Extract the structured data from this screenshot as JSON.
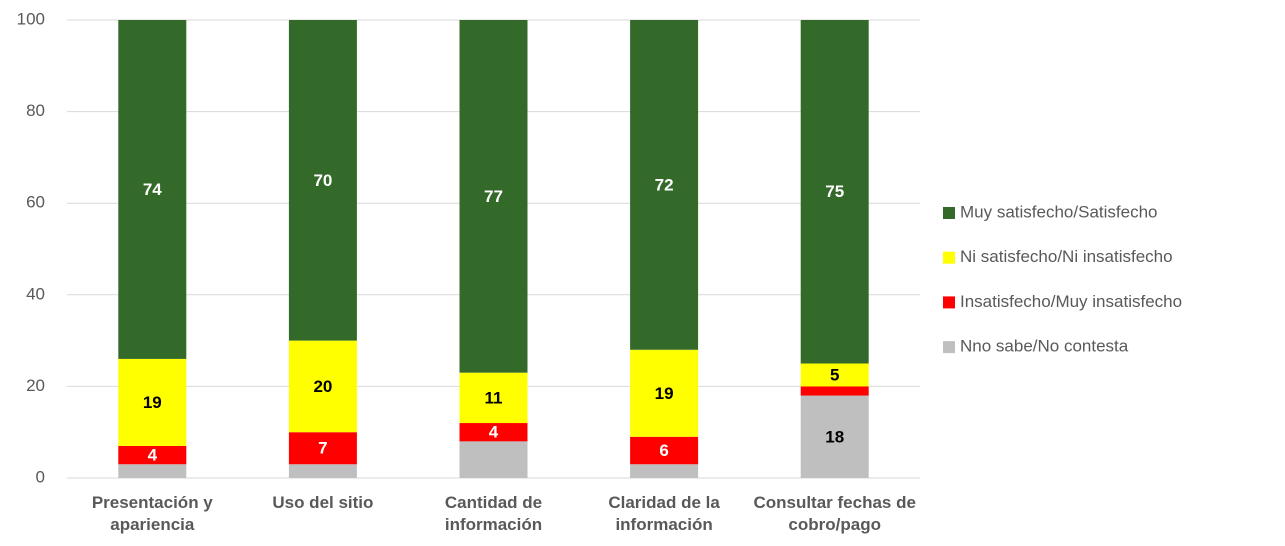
{
  "chart_data": {
    "type": "stacked_bar",
    "categories": [
      "Presentación y apariencia",
      "Uso del sitio",
      "Cantidad de información",
      "Claridad de la información",
      "Consultar fechas de cobro/pago"
    ],
    "series": [
      {
        "name": "Muy satisfecho/Satisfecho",
        "color": "#336a2a",
        "values": [
          74,
          70,
          77,
          72,
          75
        ],
        "value_labels": [
          "74",
          "70",
          "77",
          "72",
          "75"
        ]
      },
      {
        "name": "Ni satisfecho/Ni insatisfecho",
        "color": "#ffff00",
        "values": [
          19,
          20,
          11,
          19,
          5
        ],
        "value_labels": [
          "19",
          "20",
          "11",
          "19",
          "5"
        ]
      },
      {
        "name": "Insatisfecho/Muy insatisfecho",
        "color": "#ff0000",
        "values": [
          4,
          7,
          4,
          6,
          2
        ],
        "value_labels": [
          "4",
          "7",
          "4",
          "6",
          null
        ]
      },
      {
        "name": "Nno sabe/No contesta",
        "color": "#bfbfbf",
        "values": [
          3,
          3,
          8,
          3,
          18
        ],
        "value_labels": [
          null,
          null,
          null,
          null,
          "18"
        ]
      }
    ],
    "ylim": [
      0,
      100
    ],
    "yticks": [
      0,
      20,
      40,
      60,
      80,
      100
    ],
    "grid": true,
    "legend": "right"
  }
}
